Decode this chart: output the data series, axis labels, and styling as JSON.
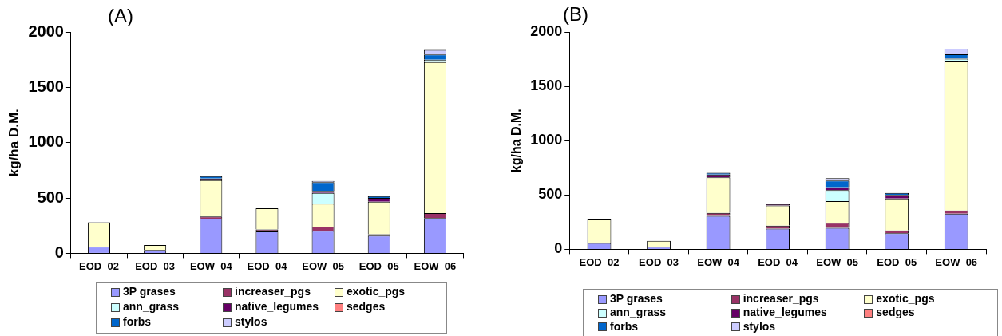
{
  "chart_data": [
    {
      "type": "bar",
      "title": "(A)",
      "ylabel": "kg/ha D.M.",
      "stacked": true,
      "grid": false,
      "legend": "bottom",
      "categories": [
        "EOD_02",
        "EOD_03",
        "EOW_04",
        "EOD_04",
        "EOW_05",
        "EOD_05",
        "EOW_06"
      ],
      "ylim": [
        0,
        2000
      ],
      "yticks": [
        0,
        500,
        1000,
        1500,
        2000
      ],
      "series": [
        {
          "name": "3P grases",
          "color": "#9999ff",
          "values": [
            60,
            30,
            313,
            197,
            203,
            160,
            319
          ]
        },
        {
          "name": "increaser_pgs",
          "color": "#993366",
          "values": [
            0,
            0,
            20,
            19,
            38,
            12,
            44
          ]
        },
        {
          "name": "exotic_pgs",
          "color": "#ffffcc",
          "values": [
            220,
            45,
            328,
            191,
            207,
            294,
            1365
          ]
        },
        {
          "name": "ann_grass",
          "color": "#ccffff",
          "values": [
            0,
            0,
            0,
            0,
            97,
            0,
            22
          ]
        },
        {
          "name": "native_legumes",
          "color": "#660066",
          "values": [
            0,
            0,
            15,
            0,
            18,
            35,
            0
          ]
        },
        {
          "name": "sedges",
          "color": "#ff8080",
          "values": [
            0,
            0,
            0,
            0,
            0,
            0,
            0
          ]
        },
        {
          "name": "forbs",
          "color": "#0066cc",
          "values": [
            0,
            0,
            20,
            0,
            79,
            15,
            47
          ]
        },
        {
          "name": "stylos",
          "color": "#ccccff",
          "values": [
            0,
            0,
            null,
            0,
            12,
            0,
            40
          ]
        }
      ]
    },
    {
      "type": "bar",
      "title": "(B)",
      "ylabel": "kg/ha D.M.",
      "stacked": true,
      "grid": false,
      "legend": "bottom",
      "categories": [
        "EOD_02",
        "EOD_03",
        "EOW_04",
        "EOD_04",
        "EOW_05",
        "EOD_05",
        "EOW_06"
      ],
      "ylim": [
        0,
        2000
      ],
      "yticks": [
        0,
        500,
        1000,
        1500,
        2000
      ],
      "series": [
        {
          "name": "3P grases",
          "color": "#9999ff",
          "values": [
            58,
            23,
            307,
            191,
            197,
            148,
            328
          ]
        },
        {
          "name": "increaser_pgs",
          "color": "#993366",
          "values": [
            0,
            0,
            29,
            26,
            46,
            26,
            29
          ]
        },
        {
          "name": "exotic_pgs",
          "color": "#ffffcc",
          "values": [
            217,
            55,
            325,
            186,
            200,
            293,
            1371
          ]
        },
        {
          "name": "ann_grass",
          "color": "#ccffff",
          "values": [
            0,
            0,
            0,
            0,
            102,
            0,
            26
          ]
        },
        {
          "name": "native_legumes",
          "color": "#660066",
          "values": [
            0,
            0,
            26,
            11,
            26,
            34,
            0
          ]
        },
        {
          "name": "sedges",
          "color": "#ff8080",
          "values": [
            0,
            0,
            0,
            0,
            0,
            0,
            0
          ]
        },
        {
          "name": "forbs",
          "color": "#0066cc",
          "values": [
            0,
            0,
            17,
            0,
            61,
            18,
            40
          ]
        },
        {
          "name": "stylos",
          "color": "#ccccff",
          "values": [
            0,
            0,
            0,
            0,
            23,
            0,
            52
          ]
        }
      ]
    }
  ]
}
